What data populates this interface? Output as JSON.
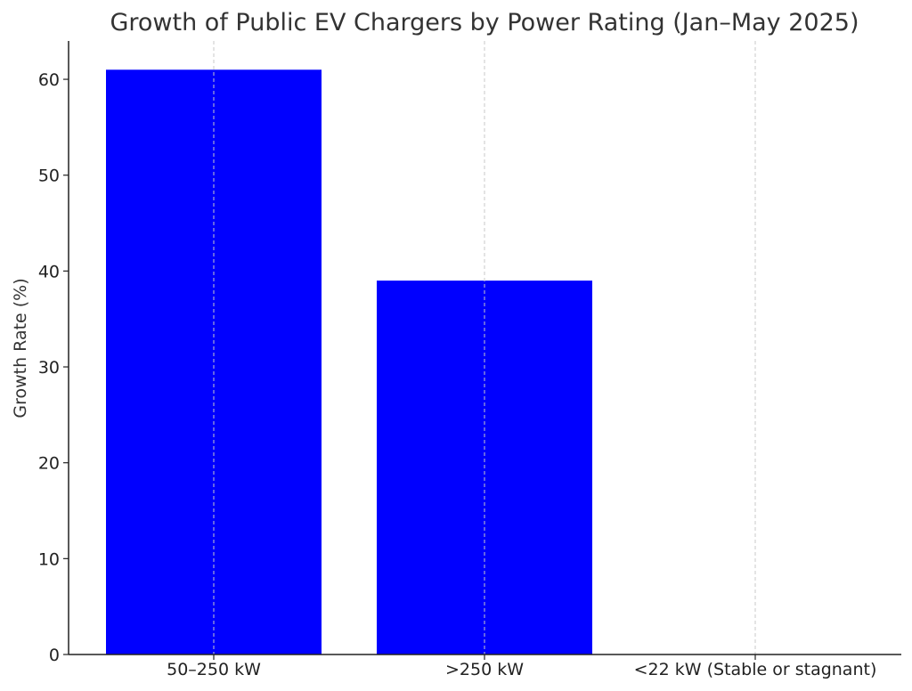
{
  "chart_data": {
    "type": "bar",
    "title": "Growth of Public EV Chargers by Power Rating (Jan–May 2025)",
    "xlabel": "",
    "ylabel": "Growth Rate (%)",
    "categories": [
      "50–250 kW",
      ">250 kW",
      "<22 kW (Stable or stagnant)"
    ],
    "values": [
      61,
      39,
      0
    ],
    "ylim": [
      0,
      64
    ],
    "yticks": [
      0,
      10,
      20,
      30,
      40,
      50,
      60
    ],
    "bar_color": "#0000ff",
    "grid": "vertical dashed at categories",
    "legend": "none"
  }
}
